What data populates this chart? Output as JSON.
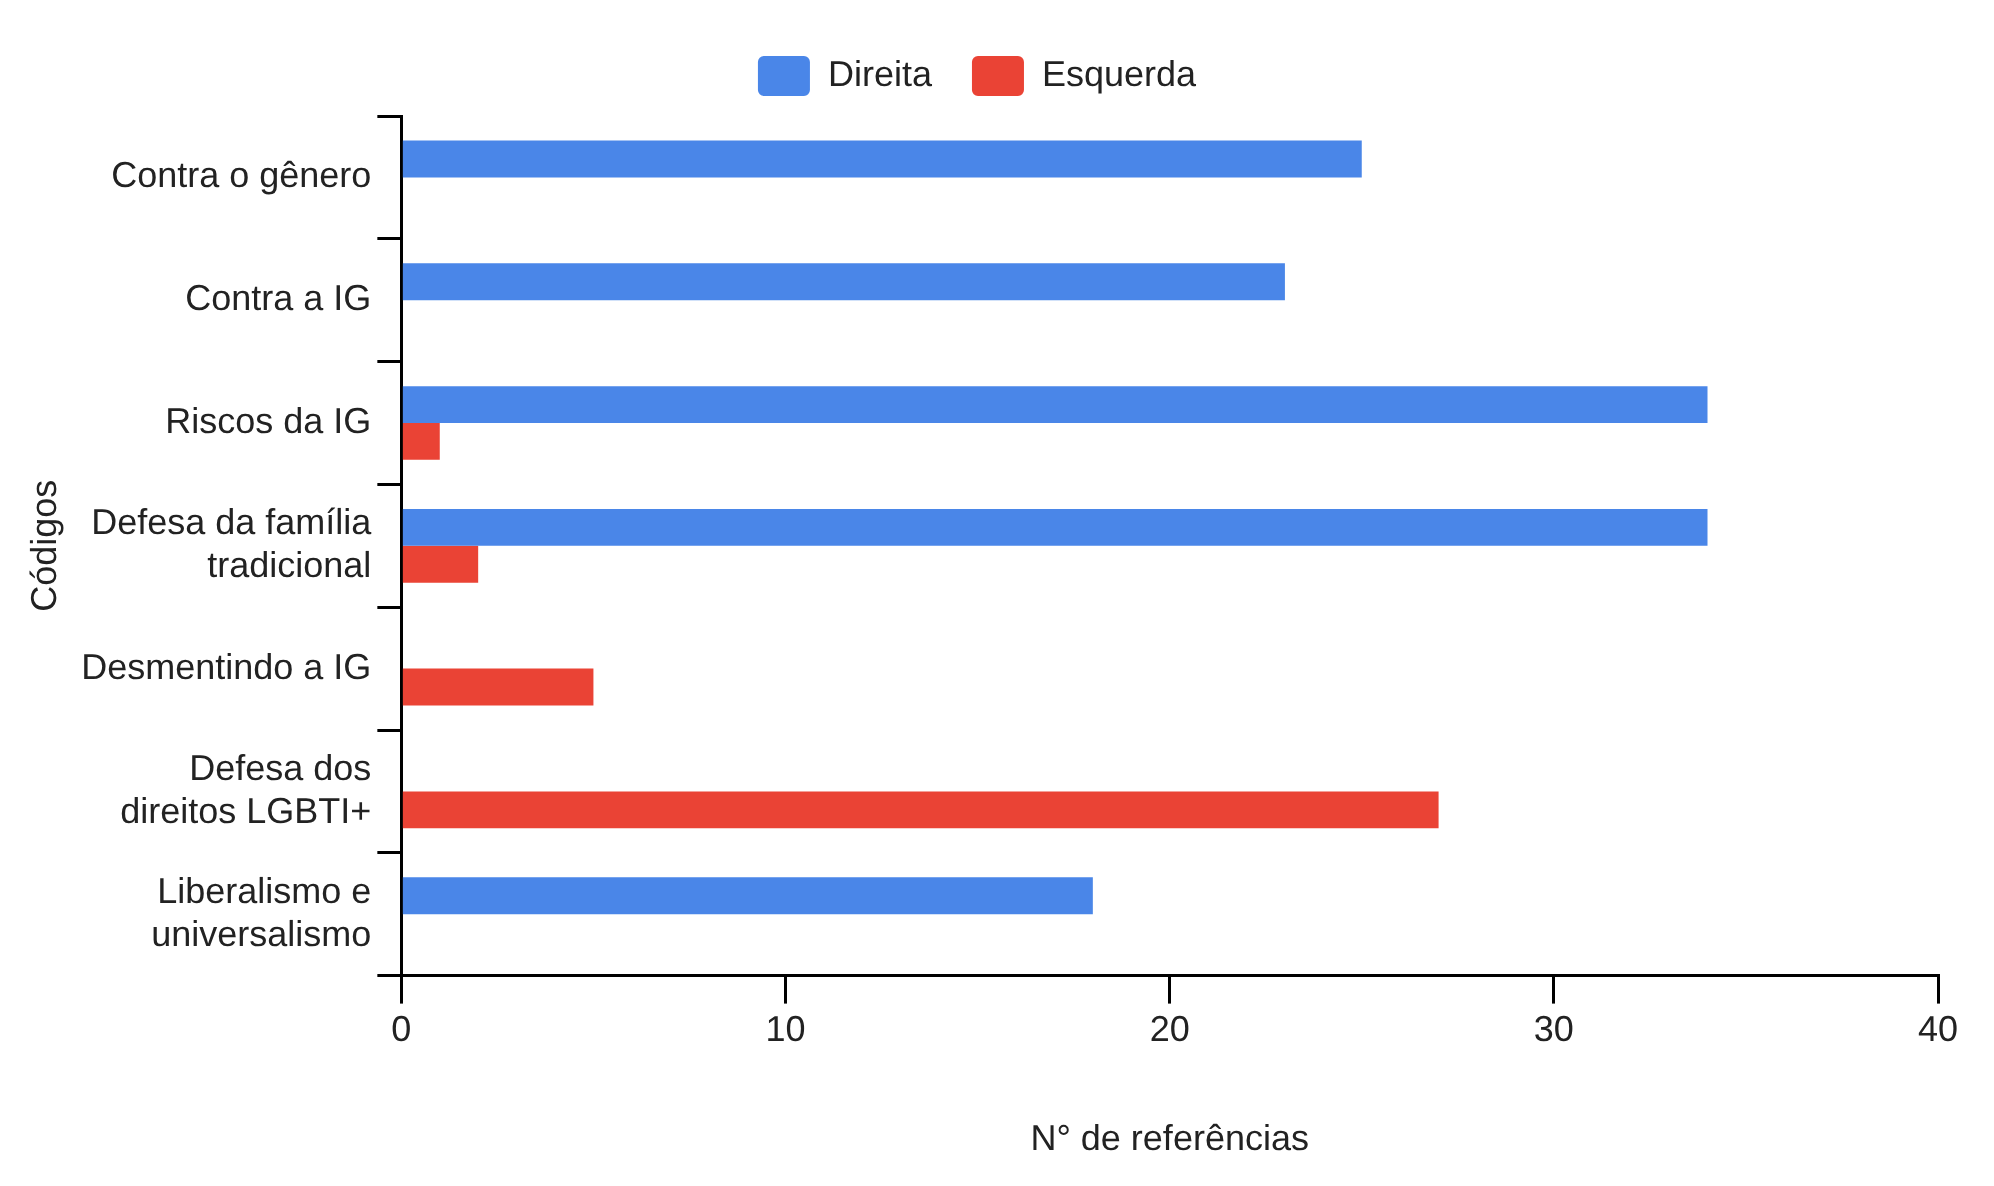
{
  "chart_data": {
    "type": "bar",
    "orientation": "horizontal",
    "xlabel": "N° de referências",
    "ylabel": "Códigos",
    "categories": [
      "Contra o gênero",
      "Contra a IG",
      "Riscos da IG",
      "Defesa da família tradicional",
      "Desmentindo a IG",
      "Defesa dos direitos LGBTI+",
      "Liberalismo e universalismo"
    ],
    "series": [
      {
        "name": "Direita",
        "color": "#4a86e8",
        "values": [
          25,
          23,
          34,
          34,
          null,
          null,
          18
        ]
      },
      {
        "name": "Esquerda",
        "color": "#ea4335",
        "values": [
          null,
          null,
          1,
          2,
          5,
          27,
          null
        ]
      }
    ],
    "xlim": [
      0,
      40
    ],
    "xticks": [
      0,
      10,
      20,
      30,
      40
    ],
    "legend": "top",
    "grid": false
  }
}
